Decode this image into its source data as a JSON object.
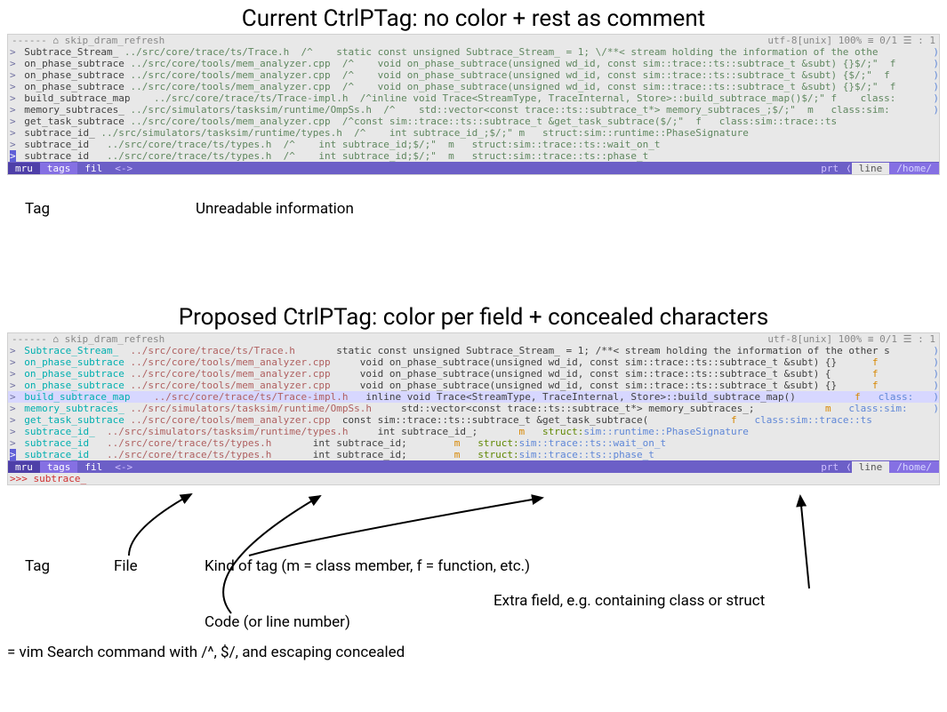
{
  "titles": {
    "current": "Current CtrlPTag: no color + rest as comment",
    "proposed": "Proposed CtrlPTag: color per field + concealed characters"
  },
  "colors": {
    "bg": "#e8e8e8",
    "text_gray": "#888888",
    "text_default": "#404040",
    "comment_green": "#5f875f",
    "powerline_dark": "#4e3fa8",
    "powerline_mid": "#6c5fc7",
    "powerline_light": "#8570e3",
    "tag_cyan": "#00afaf",
    "file_red": "#af5f5f",
    "kind_amber": "#d78700",
    "struct_green": "#5f8700",
    "extra_blue": "#5f87d7",
    "trailing_blue": "#5f87d7",
    "input_red": "#d70000",
    "build_row_bg": "#d7d7ff"
  },
  "topbar": {
    "left": " ------   ⌂ skip_dram_refresh",
    "right": "utf-8[unix]   100% ≡   0/1 ☰ :  1 "
  },
  "powerline": {
    "mru": "mru",
    "tags": "tags",
    "fil": "fil",
    "arrows": "<->",
    "prt": "prt",
    "line": "line",
    "home": "/home/"
  },
  "input_line": ">>> subtrace_",
  "panel1": {
    "rows": [
      {
        "gt": ">",
        "tag": "Subtrace_Stream_",
        "file": "../src/core/trace/ts/Trace.h",
        "code": "/^    static const unsigned Subtrace_Stream_ = 1; \\/**< stream holding the information of the othe",
        "trailing": ")"
      },
      {
        "gt": ">",
        "tag": "on_phase_subtrace",
        "file": "../src/core/tools/mem_analyzer.cpp",
        "code": "/^    void on_phase_subtrace(unsigned wd_id, const sim::trace::ts::subtrace_t &subt) {}$/;\"  f",
        "trailing": ")"
      },
      {
        "gt": ">",
        "tag": "on_phase_subtrace",
        "file": "../src/core/tools/mem_analyzer.cpp",
        "code": "/^    void on_phase_subtrace(unsigned wd_id, const sim::trace::ts::subtrace_t &subt) {$/;\"  f",
        "trailing": ")"
      },
      {
        "gt": ">",
        "tag": "on_phase_subtrace",
        "file": "../src/core/tools/mem_analyzer.cpp",
        "code": "/^    void on_phase_subtrace(unsigned wd_id, const sim::trace::ts::subtrace_t &subt) {}$/;\"  f",
        "trailing": ")"
      },
      {
        "gt": ">",
        "tag": "build_subtrace_map",
        "file": "   ../src/core/trace/ts/Trace-impl.h",
        "code": "/^inline void Trace<StreamType, TraceInternal, Store>::build_subtrace_map()$/;\" f    class:",
        "trailing": ")"
      },
      {
        "gt": ">",
        "tag": "memory_subtraces_",
        "file": "../src/simulators/tasksim/runtime/OmpSs.h",
        "code": "/^    std::vector<const trace::ts::subtrace_t*> memory_subtraces_;$/;\"  m   class:sim:",
        "trailing": ")"
      },
      {
        "gt": ">",
        "tag": "get_task_subtrace",
        "file": "../src/core/tools/mem_analyzer.cpp",
        "code": "/^const sim::trace::ts::subtrace_t &get_task_subtrace($/;\"  f   class:sim::trace::ts",
        "trailing": ""
      },
      {
        "gt": ">",
        "tag": "subtrace_id_",
        "file": "../src/simulators/tasksim/runtime/types.h",
        "code": "/^    int subtrace_id_;$/;\" m   struct:sim::runtime::PhaseSignature",
        "trailing": ""
      },
      {
        "gt": ">",
        "tag": "subtrace_id",
        "file": "  ../src/core/trace/ts/types.h",
        "code": "/^    int subtrace_id;$/;\"  m   struct:sim::trace::ts::wait_on_t",
        "trailing": ""
      },
      {
        "gt": ">",
        "tag": "subtrace_id",
        "file": "  ../src/core/trace/ts/types.h",
        "code": "/^    int subtrace_id;$/;\"  m   struct:sim::trace::ts::phase_t",
        "trailing": "",
        "cursor": true
      }
    ]
  },
  "panel2": {
    "rows": [
      {
        "gt": ">",
        "tag": "Subtrace_Stream_",
        "file": "  ../src/core/trace/ts/Trace.h",
        "code": "       static const unsigned Subtrace_Stream_ = 1; /**< stream holding the information of the other s",
        "kind": "",
        "extra": "",
        "trailing": ")"
      },
      {
        "gt": ">",
        "tag": "on_phase_subtrace",
        "file": " ../src/core/tools/mem_analyzer.cpp",
        "code": "     void on_phase_subtrace(unsigned wd_id, const sim::trace::ts::subtrace_t &subt) {}",
        "kind": "      f",
        "extra": "",
        "trailing": " )"
      },
      {
        "gt": ">",
        "tag": "on_phase_subtrace",
        "file": " ../src/core/tools/mem_analyzer.cpp",
        "code": "     void on_phase_subtrace(unsigned wd_id, const sim::trace::ts::subtrace_t &subt) {",
        "kind": "       f",
        "extra": "",
        "trailing": " )"
      },
      {
        "gt": ">",
        "tag": "on_phase_subtrace",
        "file": " ../src/core/tools/mem_analyzer.cpp",
        "code": "     void on_phase_subtrace(unsigned wd_id, const sim::trace::ts::subtrace_t &subt) {}",
        "kind": "      f",
        "extra": "",
        "trailing": " )"
      },
      {
        "gt": ">",
        "tag": "build_subtrace_map",
        "file": "    ../src/core/trace/ts/Trace-impl.h",
        "code": "   inline void Trace<StreamType, TraceInternal, Store>::build_subtrace_map()",
        "kind": "          f",
        "extra": "   class:",
        "trailing": ")",
        "highlight": true
      },
      {
        "gt": ">",
        "tag": "memory_subtraces_",
        "file": " ../src/simulators/tasksim/runtime/OmpSs.h",
        "code": "     std::vector<const trace::ts::subtrace_t*> memory_subtraces_;",
        "kind": "            m",
        "extra": "   class:sim:",
        "trailing": ")"
      },
      {
        "gt": ">",
        "tag": "get_task_subtrace",
        "file": " ../src/core/tools/mem_analyzer.cpp",
        "code": "  const sim::trace::ts::subtrace_t &get_task_subtrace(",
        "kind": "              f",
        "extra": "   class:sim::trace::ts",
        "trailing": ""
      },
      {
        "gt": ">",
        "tag": "subtrace_id_",
        "file": "  ../src/simulators/tasksim/runtime/types.h",
        "code": "     int subtrace_id_;",
        "kind": "       m",
        "struct": "   struct:",
        "extra": "sim::runtime::PhaseSignature",
        "trailing": ""
      },
      {
        "gt": ">",
        "tag": "subtrace_id",
        "file": "   ../src/core/trace/ts/types.h",
        "code": "       int subtrace_id;",
        "kind": "        m",
        "struct": "   struct:",
        "extra": "sim::trace::ts::wait_on_t",
        "trailing": ""
      },
      {
        "gt": ">",
        "tag": "subtrace_id",
        "file": "   ../src/core/trace/ts/types.h",
        "code": "       int subtrace_id;",
        "kind": "        m",
        "struct": "   struct:",
        "extra": "sim::trace::ts::phase_t",
        "trailing": "",
        "cursor": true
      }
    ]
  },
  "annotations": {
    "panel1": {
      "tag": "Tag",
      "unreadable": "Unreadable information"
    },
    "panel2": {
      "tag": "Tag",
      "file": "File",
      "kind": "Kind of tag (m = class member, f = function, etc.)",
      "extra": "Extra field, e.g. containing class or struct",
      "code": "Code (or line number)",
      "concealed": "= vim Search command with /^, $/, and escaping concealed"
    }
  }
}
